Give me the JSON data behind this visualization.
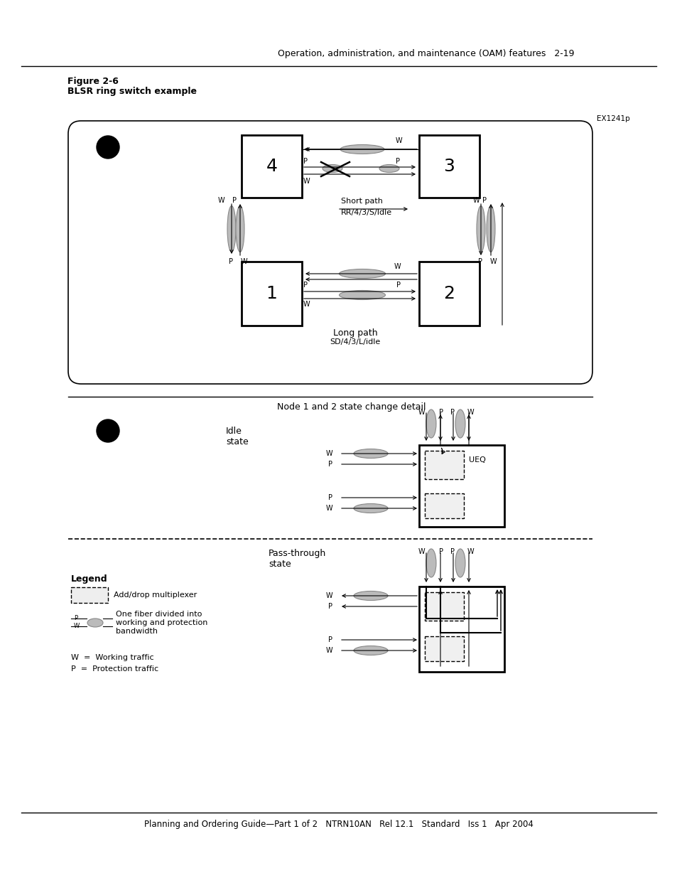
{
  "page_header": "Operation, administration, and maintenance (OAM) features   2-19",
  "figure_title_line1": "Figure 2-6",
  "figure_title_line2": "BLSR ring switch example",
  "figure_id": "EX1241p",
  "footer": "Planning and Ordering Guide—Part 1 of 2   NTRN10AN   Rel 12.1   Standard   Iss 1   Apr 2004",
  "node1_and_2_label": "Node 1 and 2 state change detail",
  "short_path_label": "Short path",
  "short_path_sub": "RR/4/3/S/Idle",
  "long_path_label": "Long path",
  "long_path_sub": "SD/4/3/L/idle",
  "idle_state_label": "Idle\nstate",
  "pass_through_label": "Pass-through\nstate",
  "ueq_label": "UEQ",
  "legend_title": "Legend",
  "legend_adm": "Add/drop multiplexer",
  "legend_fiber": "One fiber divided into\nworking and protection\nbandwidth",
  "legend_W": "W  =  Working traffic",
  "legend_P": "P  =  Protection traffic",
  "bg_color": "#ffffff"
}
